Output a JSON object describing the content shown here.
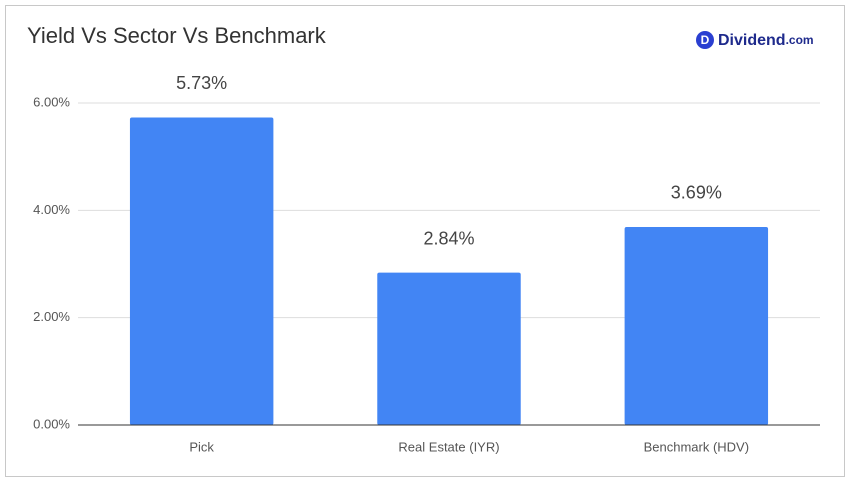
{
  "chart_data": {
    "type": "bar",
    "title": "Yield Vs Sector Vs Benchmark",
    "categories": [
      "Pick",
      "Real Estate (IYR)",
      "Benchmark (HDV)"
    ],
    "values": [
      5.73,
      2.84,
      3.69
    ],
    "value_labels": [
      "5.73%",
      "2.84%",
      "3.69%"
    ],
    "color": "#4285f4",
    "ylim": [
      0,
      6
    ],
    "yticks": [
      {
        "value": 0,
        "label": "0.00%"
      },
      {
        "value": 2,
        "label": "2.00%"
      },
      {
        "value": 4,
        "label": "4.00%"
      },
      {
        "value": 6,
        "label": "6.00%"
      }
    ],
    "grid": true
  },
  "logo": {
    "icon": "D",
    "name": "Dividend",
    "suffix": ".com"
  }
}
